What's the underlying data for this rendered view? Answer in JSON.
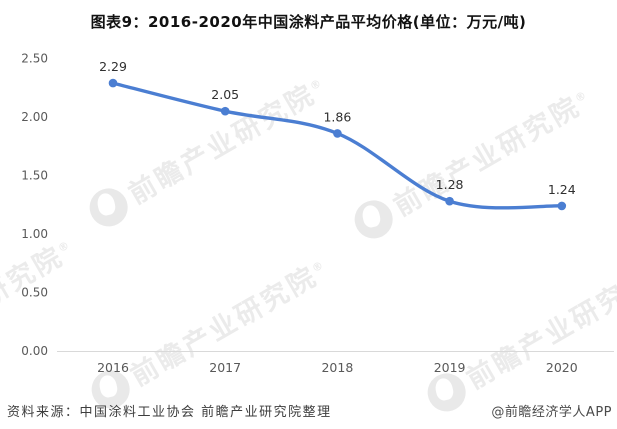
{
  "title": "图表9：2016-2020年中国涂料产品平均价格(单位：万元/吨)",
  "chart_data": {
    "type": "line",
    "title": "图表9：2016-2020年中国涂料产品平均价格(单位：万元/吨)",
    "unit": "万元/吨",
    "categories": [
      "2016",
      "2017",
      "2018",
      "2019",
      "2020"
    ],
    "values": [
      2.29,
      2.05,
      1.86,
      1.28,
      1.24
    ],
    "point_labels": [
      "2.29",
      "2.05",
      "1.86",
      "1.28",
      "1.24"
    ],
    "xlabel": "",
    "ylabel": "",
    "ylim": [
      0,
      2.5
    ],
    "yticks": [
      2.5,
      2.0,
      1.5,
      1.0,
      0.5,
      0.0
    ],
    "ytick_labels": [
      "2.50",
      "2.00",
      "1.50",
      "1.00",
      "0.50",
      "0.00"
    ],
    "grid": false,
    "legend": "none",
    "smooth": true,
    "line_color": "#4b7ed2",
    "marker_color": "#4b7ed2",
    "axis_line_color": "#d9d9d9",
    "tick_label_color": "#595959",
    "data_label_color": "#303030"
  },
  "watermark": {
    "text": "前瞻产业研究院",
    "reg_mark": "®",
    "color": "#ebebeb"
  },
  "footer": {
    "source": "资料来源：中国涂料工业协会 前瞻产业研究院整理",
    "credit": "@前瞻经济学人APP"
  }
}
